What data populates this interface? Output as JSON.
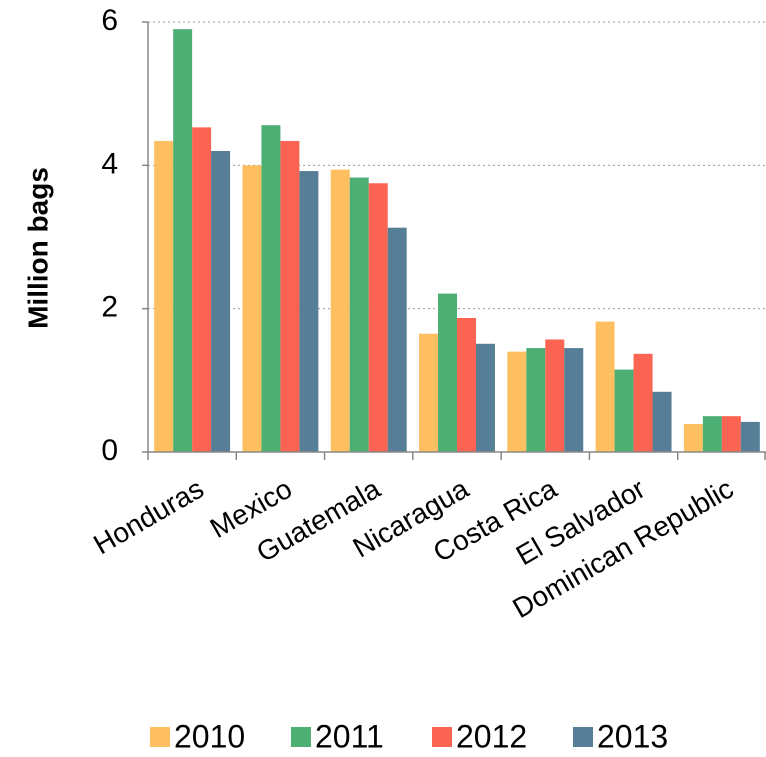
{
  "chart_data": {
    "type": "bar",
    "y_label": "Million bags",
    "categories": [
      "Honduras",
      "Mexico",
      "Guatemala",
      "Nicaragua",
      "Costa Rica",
      "El Salvador",
      "Dominican Republic"
    ],
    "series": [
      {
        "name": "2010",
        "color": "#fdbf5f",
        "values": [
          4.34,
          4.0,
          3.94,
          1.65,
          1.4,
          1.82,
          0.39
        ]
      },
      {
        "name": "2011",
        "color": "#4eaf75",
        "values": [
          5.9,
          4.56,
          3.83,
          2.21,
          1.45,
          1.15,
          0.5
        ]
      },
      {
        "name": "2012",
        "color": "#fb6352",
        "values": [
          4.53,
          4.34,
          3.75,
          1.87,
          1.57,
          1.37,
          0.5
        ]
      },
      {
        "name": "2013",
        "color": "#567e96",
        "values": [
          4.2,
          3.92,
          3.13,
          1.51,
          1.45,
          0.84,
          0.42
        ]
      }
    ],
    "ylim": [
      0,
      6
    ],
    "yticks": [
      0,
      2,
      4,
      6
    ],
    "grid": true,
    "legend": "bottom"
  }
}
